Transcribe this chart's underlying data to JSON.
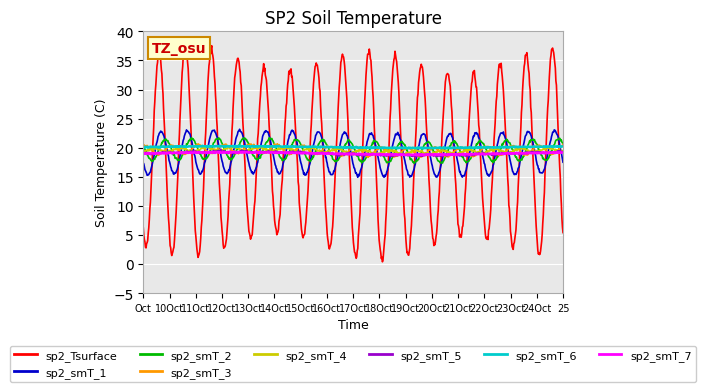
{
  "title": "SP2 Soil Temperature",
  "xlabel": "Time",
  "ylabel": "Soil Temperature (C)",
  "ylim": [
    -5,
    40
  ],
  "background_color": "#e8e8e8",
  "annotation_text": "TZ_osu",
  "annotation_bg": "#ffffcc",
  "annotation_border": "#cc8800",
  "xtick_positions": [
    0,
    1,
    2,
    3,
    4,
    5,
    6,
    7,
    8,
    9,
    10,
    11,
    12,
    13,
    14,
    15,
    16
  ],
  "xtick_labels": [
    "Oct",
    "10Oct",
    "11Oct",
    "12Oct",
    "13Oct",
    "14Oct",
    "15Oct",
    "16Oct",
    "17Oct",
    "18Oct",
    "19Oct",
    "20Oct",
    "21Oct",
    "22Oct",
    "23Oct",
    "24Oct",
    "25"
  ],
  "n_days": 16,
  "series": [
    {
      "name": "sp2_Tsurface",
      "color": "#ff0000",
      "lw": 1.2
    },
    {
      "name": "sp2_smT_1",
      "color": "#0000cc",
      "lw": 1.2
    },
    {
      "name": "sp2_smT_2",
      "color": "#00bb00",
      "lw": 1.2
    },
    {
      "name": "sp2_smT_3",
      "color": "#ff9900",
      "lw": 1.2
    },
    {
      "name": "sp2_smT_4",
      "color": "#cccc00",
      "lw": 1.2
    },
    {
      "name": "sp2_smT_5",
      "color": "#9900cc",
      "lw": 1.2
    },
    {
      "name": "sp2_smT_6",
      "color": "#00cccc",
      "lw": 1.8
    },
    {
      "name": "sp2_smT_7",
      "color": "#ff00ff",
      "lw": 1.8
    }
  ]
}
